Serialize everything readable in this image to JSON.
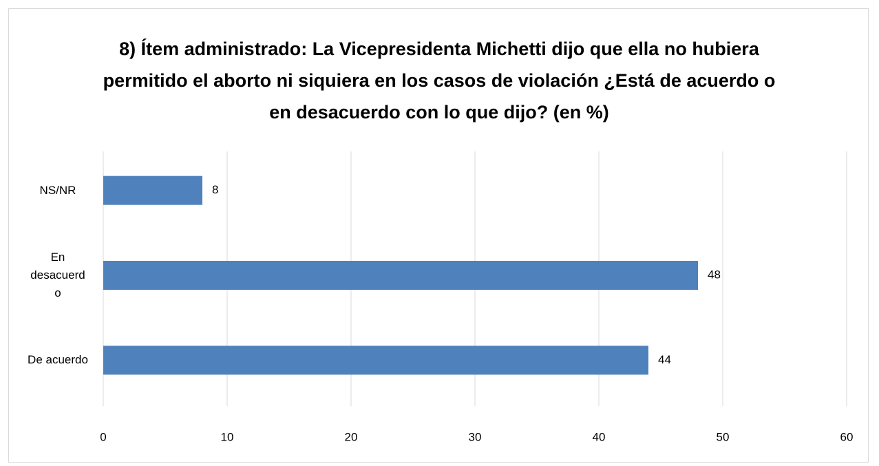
{
  "chart_data": {
    "type": "bar",
    "orientation": "horizontal",
    "title": "8) Ítem administrado: La Vicepresidenta Michetti dijo que ella no hubiera permitido el aborto ni siquiera en los casos de violación ¿Está de acuerdo o en desacuerdo con lo que dijo? (en %)",
    "categories": [
      "NS/NR",
      "En desacuerdo",
      "De acuerdo"
    ],
    "values": [
      8,
      48,
      44
    ],
    "color": "#4f81bd",
    "xlim": [
      0,
      60
    ],
    "xticks": [
      0,
      10,
      20,
      30,
      40,
      50,
      60
    ],
    "grid": true
  }
}
